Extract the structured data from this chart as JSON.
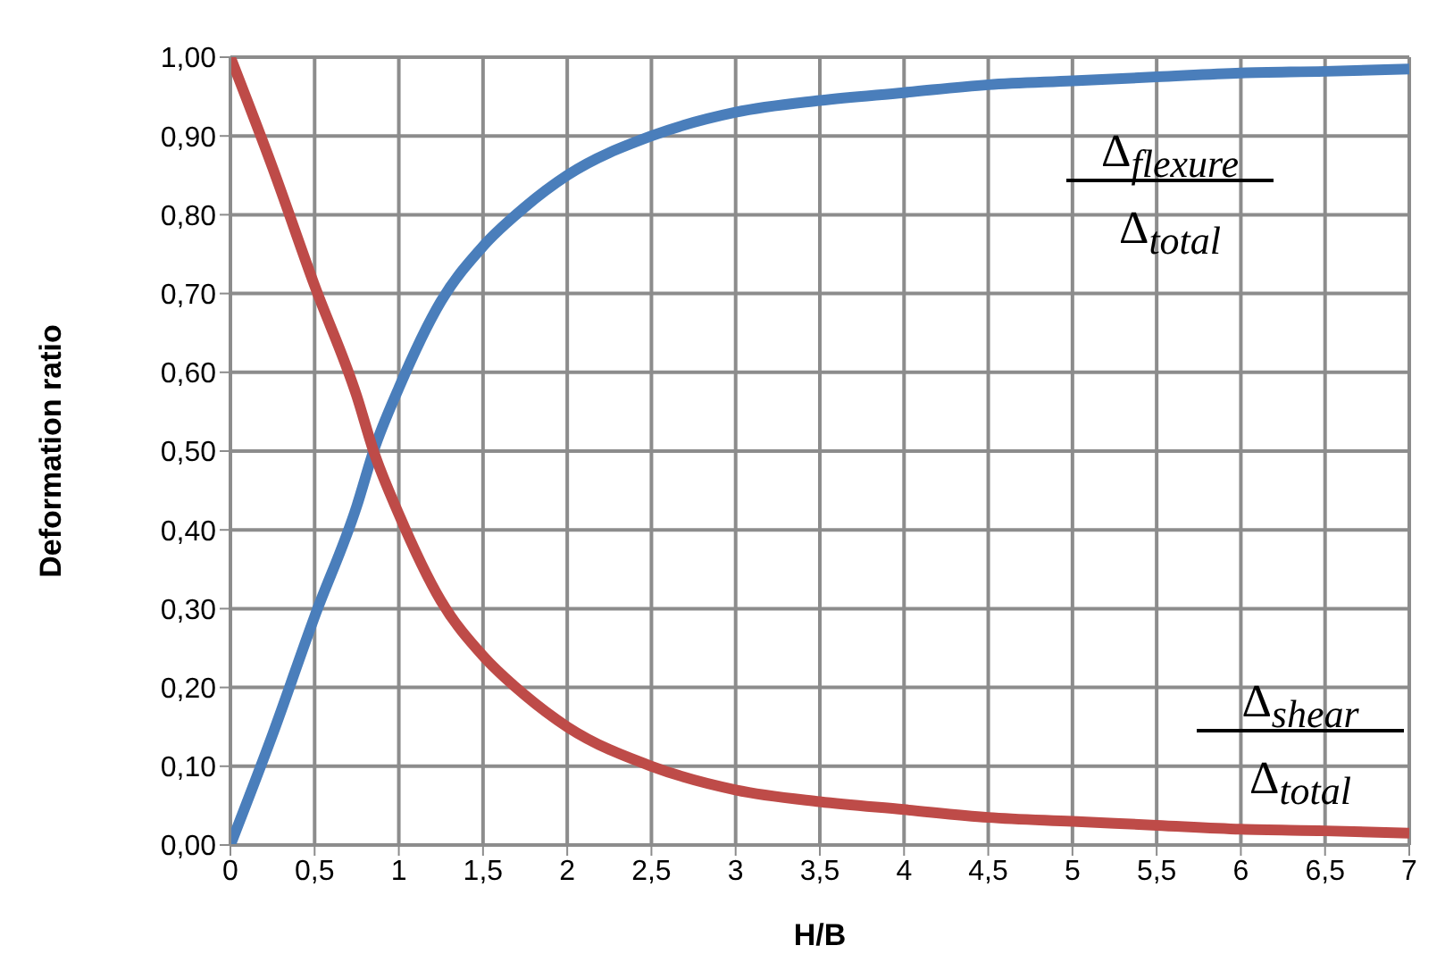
{
  "chart_data": {
    "type": "line",
    "xlabel": "H/B",
    "ylabel": "Deformation ratio",
    "x": [
      0,
      0.25,
      0.5,
      0.75,
      0.85,
      1,
      1.25,
      1.5,
      1.75,
      2,
      2.5,
      3,
      3.5,
      4,
      4.5,
      5,
      5.5,
      6,
      6.5,
      7
    ],
    "series": [
      {
        "color": "#4a7ebb",
        "values": [
          0,
          0.14,
          0.29,
          0.43,
          0.5,
          0.58,
          0.69,
          0.76,
          0.81,
          0.85,
          0.9,
          0.93,
          0.945,
          0.955,
          0.965,
          0.97,
          0.975,
          0.98,
          0.982,
          0.985
        ]
      },
      {
        "color": "#be4b48",
        "values": [
          1,
          0.86,
          0.71,
          0.57,
          0.5,
          0.42,
          0.31,
          0.24,
          0.19,
          0.15,
          0.1,
          0.07,
          0.055,
          0.045,
          0.035,
          0.03,
          0.025,
          0.02,
          0.018,
          0.015
        ]
      }
    ],
    "xlim": [
      0,
      7
    ],
    "ylim": [
      0,
      1
    ],
    "xticks": [
      0,
      {
        "value": 0.5,
        "label": "0,5"
      },
      1,
      {
        "value": 1.5,
        "label": "1,5"
      },
      2,
      {
        "value": 2.5,
        "label": "2,5"
      },
      3,
      {
        "value": 3.5,
        "label": "3,5"
      },
      4,
      {
        "value": 4.5,
        "label": "4,5"
      },
      5,
      {
        "value": 5.5,
        "label": "5,5"
      },
      6,
      {
        "value": 6.5,
        "label": "6,5"
      },
      7
    ],
    "yticks": [
      {
        "value": 0,
        "label": "0,00"
      },
      {
        "value": 0.1,
        "label": "0,10"
      },
      {
        "value": 0.2,
        "label": "0,20"
      },
      {
        "value": 0.3,
        "label": "0,30"
      },
      {
        "value": 0.4,
        "label": "0,40"
      },
      {
        "value": 0.5,
        "label": "0,50"
      },
      {
        "value": 0.6,
        "label": "0,60"
      },
      {
        "value": 0.7,
        "label": "0,70"
      },
      {
        "value": 0.8,
        "label": "0,80"
      },
      {
        "value": 0.9,
        "label": "0,90"
      },
      {
        "value": 1,
        "label": "1,00"
      }
    ],
    "grid": true,
    "marker": "none",
    "line_style": "solid",
    "annotations": [
      "Δ$_{flexure}$",
      "Δ$_{total}$",
      "Δ$_{shear}$",
      "Δ$_{total}$"
    ]
  }
}
